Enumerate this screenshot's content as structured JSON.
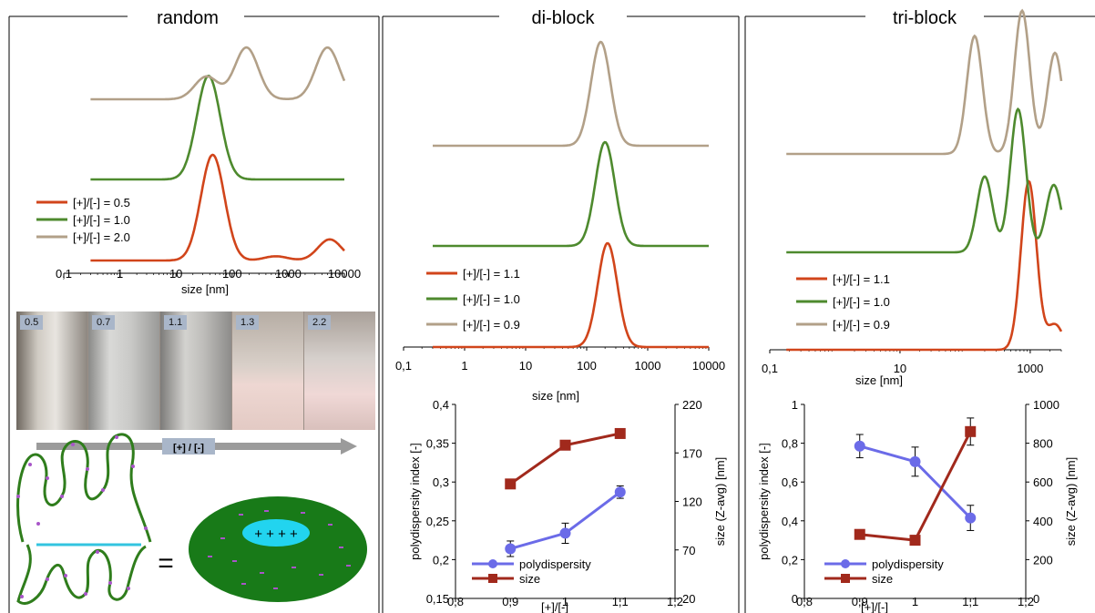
{
  "panels": [
    {
      "title": "random"
    },
    {
      "title": "di-block"
    },
    {
      "title": "tri-block"
    }
  ],
  "colors": {
    "ratio_low": "#d1451b",
    "ratio_mid": "#4e8a2e",
    "ratio_high": "#b2a088",
    "pdi": "#6b6be8",
    "size": "#a1291c",
    "axis": "#000000"
  },
  "chart_data": [
    {
      "type": "line",
      "panel": "random",
      "xscale": "log",
      "xlim": [
        0.1,
        10000
      ],
      "x_ticks": [
        "0,1",
        "1",
        "10",
        "100",
        "1000",
        "10000"
      ],
      "xlabel": "size [nm]",
      "series": [
        {
          "name": "[+]/[-] = 0.5",
          "peaks": [
            {
              "center": 45,
              "height": 1.0
            },
            {
              "center": 600,
              "height": 0.04
            },
            {
              "center": 5500,
              "height": 0.2
            }
          ]
        },
        {
          "name": "[+]/[-] = 1.0",
          "peaks": [
            {
              "center": 38,
              "height": 1.0
            }
          ]
        },
        {
          "name": "[+]/[-] = 2.0",
          "peaks": [
            {
              "center": 35,
              "height": 0.22
            },
            {
              "center": 180,
              "height": 0.5
            },
            {
              "center": 5000,
              "height": 0.5
            }
          ]
        }
      ]
    },
    {
      "type": "line",
      "panel": "di-block",
      "xscale": "log",
      "xlim": [
        0.1,
        10000
      ],
      "x_ticks": [
        "0,1",
        "1",
        "10",
        "100",
        "1000",
        "10000"
      ],
      "xlabel": "size [nm]",
      "series": [
        {
          "name": "[+]/[-] = 1.1",
          "peaks": [
            {
              "center": 220,
              "height": 1.0
            }
          ]
        },
        {
          "name": "[+]/[-] = 1.0",
          "peaks": [
            {
              "center": 200,
              "height": 1.0
            }
          ]
        },
        {
          "name": "[+]/[-] = 0.9",
          "peaks": [
            {
              "center": 170,
              "height": 1.0
            }
          ]
        }
      ]
    },
    {
      "type": "line",
      "panel": "tri-block",
      "xscale": "log",
      "xlim": [
        0.1,
        3000
      ],
      "x_ticks": [
        "0,1",
        "10",
        "1000"
      ],
      "xlabel": "size [nm]",
      "series": [
        {
          "name": "[+]/[-] = 1.1",
          "peaks": [
            {
              "center": 950,
              "height": 1.0
            },
            {
              "center": 2400,
              "height": 0.15
            }
          ]
        },
        {
          "name": "[+]/[-] = 1.0",
          "peaks": [
            {
              "center": 200,
              "height": 0.45
            },
            {
              "center": 650,
              "height": 0.85
            },
            {
              "center": 2300,
              "height": 0.4
            }
          ]
        },
        {
          "name": "[+]/[-] = 0.9",
          "peaks": [
            {
              "center": 140,
              "height": 0.7
            },
            {
              "center": 750,
              "height": 0.85
            },
            {
              "center": 2400,
              "height": 0.6
            }
          ]
        }
      ]
    },
    {
      "type": "line",
      "panel": "di-block",
      "x": [
        0.9,
        1.0,
        1.1
      ],
      "xlim": [
        0.8,
        1.2
      ],
      "x_ticks": [
        "0,8",
        "0,9",
        "1",
        "1,1",
        "1,2"
      ],
      "xlabel": "[+]/[-]",
      "ylabel": "polydispersity index [-]",
      "ylim": [
        0.15,
        0.4
      ],
      "y_ticks": [
        "0,15",
        "0,2",
        "0,25",
        "0,3",
        "0,35",
        "0,4"
      ],
      "y2label": "size (Z-avg) [nm]",
      "y2lim": [
        20,
        220
      ],
      "y2_ticks": [
        "20",
        "70",
        "120",
        "170",
        "220"
      ],
      "series": [
        {
          "name": "polydispersity",
          "axis": "left",
          "values": [
            0.214,
            0.234,
            0.287
          ],
          "errors": [
            0.01,
            0.013,
            0.008
          ]
        },
        {
          "name": "size",
          "axis": "right",
          "values": [
            138,
            178,
            190
          ]
        }
      ]
    },
    {
      "type": "line",
      "panel": "tri-block",
      "x": [
        0.9,
        1.0,
        1.1
      ],
      "xlim": [
        0.8,
        1.2
      ],
      "x_ticks": [
        "0,8",
        "0,9",
        "1",
        "1,1",
        "1,2"
      ],
      "xlabel": "[+]/[-]",
      "ylabel": "polydispersity index [-]",
      "ylim": [
        0,
        1
      ],
      "y_ticks": [
        "0",
        "0,2",
        "0,4",
        "0,6",
        "0,8",
        "1"
      ],
      "y2label": "size (Z-avg) [nm]",
      "y2lim": [
        0,
        1000
      ],
      "y2_ticks": [
        "0",
        "200",
        "400",
        "600",
        "800",
        "1000"
      ],
      "series": [
        {
          "name": "polydispersity",
          "axis": "left",
          "values": [
            0.785,
            0.705,
            0.415
          ],
          "errors": [
            0.06,
            0.075,
            0.065
          ]
        },
        {
          "name": "size",
          "axis": "right",
          "values": [
            330,
            300,
            860
          ],
          "errors": [
            0,
            0,
            70
          ]
        }
      ]
    }
  ],
  "photo": {
    "vial_labels": [
      "0.5",
      "0.7",
      "1.1",
      "1.3",
      "2.2"
    ],
    "arrow_label": "[+] / [-]"
  },
  "schematic": {
    "equals": "=",
    "core_charges": "+ + + +"
  }
}
